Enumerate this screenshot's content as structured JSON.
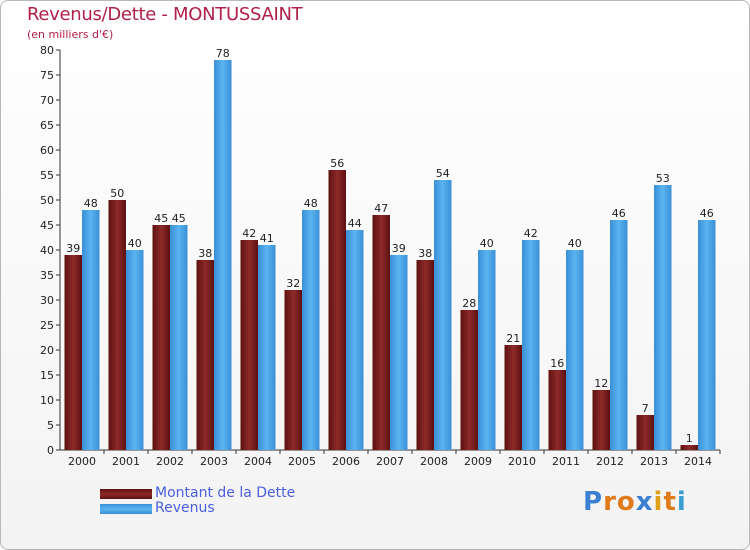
{
  "chart_data": {
    "type": "bar",
    "title": "Revenus/Dette - MONTUSSAINT",
    "subtitle": "(en milliers d'€)",
    "xlabel": "",
    "ylabel": "",
    "ylim": [
      0,
      80
    ],
    "ytick_step": 5,
    "categories": [
      "2000",
      "2001",
      "2002",
      "2003",
      "2004",
      "2005",
      "2006",
      "2007",
      "2008",
      "2009",
      "2010",
      "2011",
      "2012",
      "2013",
      "2014"
    ],
    "series": [
      {
        "name": "Montant de la Dette",
        "color": "#7a1c1c",
        "values": [
          39,
          50,
          45,
          38,
          42,
          32,
          56,
          47,
          38,
          28,
          21,
          16,
          12,
          7,
          1
        ]
      },
      {
        "name": "Revenus",
        "color": "#4ea6e6",
        "values": [
          48,
          40,
          45,
          78,
          41,
          48,
          44,
          39,
          54,
          40,
          42,
          40,
          46,
          53,
          46
        ]
      }
    ],
    "legend": "bottom-left",
    "grid": false
  },
  "brand": {
    "text": "Proxiti",
    "letters": [
      {
        "ch": "P",
        "color": "#3a7fd0"
      },
      {
        "ch": "r",
        "color": "#e07a1a"
      },
      {
        "ch": "o",
        "color": "#e07a1a"
      },
      {
        "ch": "x",
        "color": "#3a7fd0"
      },
      {
        "ch": "i",
        "color": "#e0a01a"
      },
      {
        "ch": "t",
        "color": "#e07a1a"
      },
      {
        "ch": "i",
        "color": "#3a9fd0"
      }
    ]
  }
}
